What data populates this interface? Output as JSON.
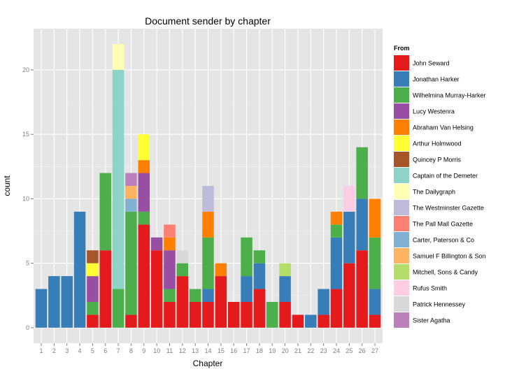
{
  "chart_data": {
    "type": "bar",
    "stacked": true,
    "title": "Document sender by chapter",
    "xlabel": "Chapter",
    "ylabel": "count",
    "ylim": [
      -1.2,
      23.2
    ],
    "yticks": [
      0,
      5,
      10,
      15,
      20
    ],
    "grid": true,
    "legend": {
      "title": "From",
      "placement": "right"
    },
    "categories": [
      "1",
      "2",
      "3",
      "4",
      "5",
      "6",
      "7",
      "8",
      "9",
      "10",
      "11",
      "12",
      "13",
      "14",
      "15",
      "16",
      "17",
      "18",
      "19",
      "20",
      "21",
      "22",
      "23",
      "24",
      "25",
      "26",
      "27"
    ],
    "series": [
      {
        "name": "John Seward",
        "color": "#E41A1C",
        "values": [
          0,
          0,
          0,
          0,
          1,
          6,
          0,
          1,
          8,
          6,
          2,
          4,
          2,
          2,
          4,
          2,
          2,
          3,
          0,
          2,
          1,
          0,
          1,
          3,
          5,
          6,
          1
        ]
      },
      {
        "name": "Jonathan Harker",
        "color": "#377EB8",
        "values": [
          3,
          4,
          4,
          9,
          0,
          0,
          0,
          0,
          0,
          0,
          0,
          0,
          0,
          1,
          0,
          0,
          2,
          2,
          0,
          2,
          0,
          1,
          2,
          4,
          4,
          4,
          2
        ]
      },
      {
        "name": "Wilhelmina Murray-Harker",
        "color": "#4DAF4A",
        "values": [
          0,
          0,
          0,
          0,
          1,
          6,
          3,
          8,
          1,
          0,
          1,
          1,
          1,
          4,
          0,
          0,
          3,
          1,
          2,
          0,
          0,
          0,
          0,
          1,
          0,
          4,
          4
        ]
      },
      {
        "name": "Lucy Westenra",
        "color": "#984EA3",
        "values": [
          0,
          0,
          0,
          0,
          2,
          0,
          0,
          0,
          3,
          1,
          3,
          0,
          0,
          0,
          0,
          0,
          0,
          0,
          0,
          0,
          0,
          0,
          0,
          0,
          0,
          0,
          0
        ]
      },
      {
        "name": "Abraham Van Helsing",
        "color": "#FF7F00",
        "values": [
          0,
          0,
          0,
          0,
          0,
          0,
          0,
          0,
          1,
          0,
          1,
          0,
          0,
          2,
          1,
          0,
          0,
          0,
          0,
          0,
          0,
          0,
          0,
          1,
          0,
          0,
          3
        ]
      },
      {
        "name": "Arthur Holmwood",
        "color": "#FFFF33",
        "values": [
          0,
          0,
          0,
          0,
          1,
          0,
          0,
          0,
          2,
          0,
          0,
          0,
          0,
          0,
          0,
          0,
          0,
          0,
          0,
          0,
          0,
          0,
          0,
          0,
          0,
          0,
          0
        ]
      },
      {
        "name": "Quincey P Morris",
        "color": "#A65628",
        "values": [
          0,
          0,
          0,
          0,
          1,
          0,
          0,
          0,
          0,
          0,
          0,
          0,
          0,
          0,
          0,
          0,
          0,
          0,
          0,
          0,
          0,
          0,
          0,
          0,
          0,
          0,
          0
        ]
      },
      {
        "name": "Captain of the Demeter",
        "color": "#8DD3C7",
        "values": [
          0,
          0,
          0,
          0,
          0,
          0,
          17,
          0,
          0,
          0,
          0,
          0,
          0,
          0,
          0,
          0,
          0,
          0,
          0,
          0,
          0,
          0,
          0,
          0,
          0,
          0,
          0
        ]
      },
      {
        "name": "The Dailygraph",
        "color": "#FFFFB3",
        "values": [
          0,
          0,
          0,
          0,
          0,
          0,
          2,
          0,
          0,
          0,
          0,
          0,
          0,
          0,
          0,
          0,
          0,
          0,
          0,
          0,
          0,
          0,
          0,
          0,
          0,
          0,
          0
        ]
      },
      {
        "name": "The Westminster Gazette",
        "color": "#BEBADA",
        "values": [
          0,
          0,
          0,
          0,
          0,
          0,
          0,
          0,
          0,
          0,
          0,
          0,
          0,
          2,
          0,
          0,
          0,
          0,
          0,
          0,
          0,
          0,
          0,
          0,
          0,
          0,
          0
        ]
      },
      {
        "name": "The Pall Mall Gazette",
        "color": "#FB8072",
        "values": [
          0,
          0,
          0,
          0,
          0,
          0,
          0,
          0,
          0,
          0,
          1,
          0,
          0,
          0,
          0,
          0,
          0,
          0,
          0,
          0,
          0,
          0,
          0,
          0,
          0,
          0,
          0
        ]
      },
      {
        "name": "Carter, Paterson & Co",
        "color": "#80B1D3",
        "values": [
          0,
          0,
          0,
          0,
          0,
          0,
          0,
          1,
          0,
          0,
          0,
          0,
          0,
          0,
          0,
          0,
          0,
          0,
          0,
          0,
          0,
          0,
          0,
          0,
          0,
          0,
          0
        ]
      },
      {
        "name": "Samuel F Billington & Son",
        "color": "#FDB462",
        "values": [
          0,
          0,
          0,
          0,
          0,
          0,
          0,
          1,
          0,
          0,
          0,
          0,
          0,
          0,
          0,
          0,
          0,
          0,
          0,
          0,
          0,
          0,
          0,
          0,
          0,
          0,
          0
        ]
      },
      {
        "name": "Mitchell, Sons & Candy",
        "color": "#B3DE69",
        "values": [
          0,
          0,
          0,
          0,
          0,
          0,
          0,
          0,
          0,
          0,
          0,
          0,
          0,
          0,
          0,
          0,
          0,
          0,
          0,
          1,
          0,
          0,
          0,
          0,
          0,
          0,
          0
        ]
      },
      {
        "name": "Rufus Smith",
        "color": "#FCCDE5",
        "values": [
          0,
          0,
          0,
          0,
          0,
          0,
          0,
          0,
          0,
          0,
          0,
          0,
          0,
          0,
          0,
          0,
          0,
          0,
          0,
          0,
          0,
          0,
          0,
          0,
          2,
          0,
          0
        ]
      },
      {
        "name": "Patrick Hennessey",
        "color": "#D9D9D9",
        "values": [
          0,
          0,
          0,
          0,
          0,
          0,
          0,
          0,
          0,
          0,
          0,
          1,
          0,
          0,
          0,
          0,
          0,
          0,
          0,
          0,
          0,
          0,
          0,
          0,
          0,
          0,
          0
        ]
      },
      {
        "name": "Sister Agatha",
        "color": "#BC80BD",
        "values": [
          0,
          0,
          0,
          0,
          0,
          0,
          0,
          1,
          0,
          0,
          0,
          0,
          0,
          0,
          0,
          0,
          0,
          0,
          0,
          0,
          0,
          0,
          0,
          0,
          0,
          0,
          0
        ]
      }
    ]
  }
}
